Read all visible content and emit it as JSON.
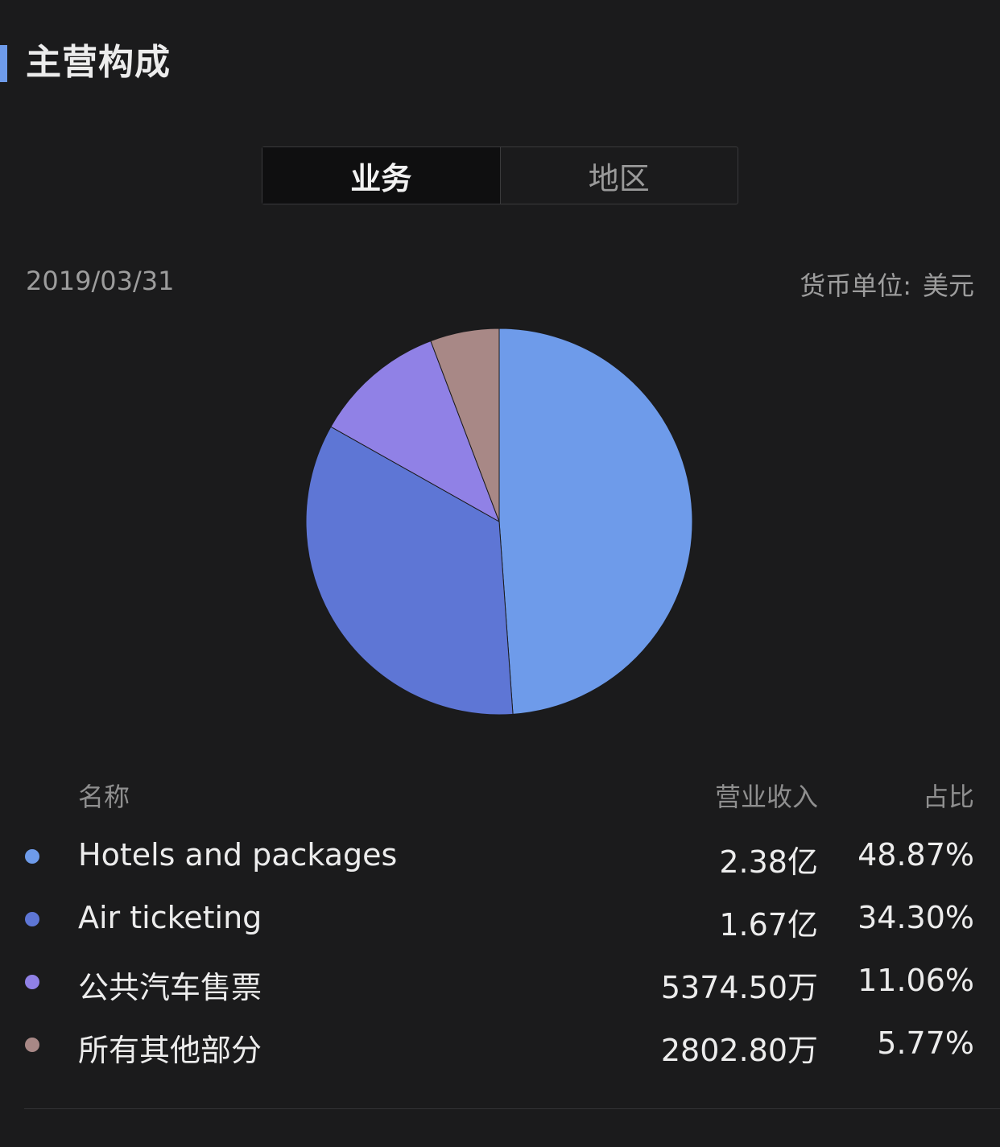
{
  "section": {
    "title": "主营构成",
    "accent_color": "#6e9bea"
  },
  "tabs": [
    {
      "label": "业务",
      "active": true
    },
    {
      "label": "地区",
      "active": false
    }
  ],
  "date": "2019/03/31",
  "currency": {
    "label": "货币单位:",
    "value": "美元"
  },
  "table": {
    "headers": {
      "name": "名称",
      "revenue": "营业收入",
      "percent": "占比"
    },
    "rows": [
      {
        "name": "Hotels and packages",
        "revenue": "2.38亿",
        "percent": "48.87%",
        "color": "#6e9bea"
      },
      {
        "name": "Air ticketing",
        "revenue": "1.67亿",
        "percent": "34.30%",
        "color": "#5e76d5"
      },
      {
        "name": "公共汽车售票",
        "revenue": "5374.50万",
        "percent": "11.06%",
        "color": "#9081e6"
      },
      {
        "name": "所有其他部分",
        "revenue": "2802.80万",
        "percent": "5.77%",
        "color": "#a88886"
      }
    ]
  },
  "chart_data": {
    "type": "pie",
    "categories": [
      "Hotels and packages",
      "Air ticketing",
      "公共汽车售票",
      "所有其他部分"
    ],
    "values": [
      48.87,
      34.3,
      11.06,
      5.77
    ],
    "colors": [
      "#6e9bea",
      "#5e76d5",
      "#9081e6",
      "#a88886"
    ],
    "start_angle": "top",
    "direction": "clockwise"
  }
}
